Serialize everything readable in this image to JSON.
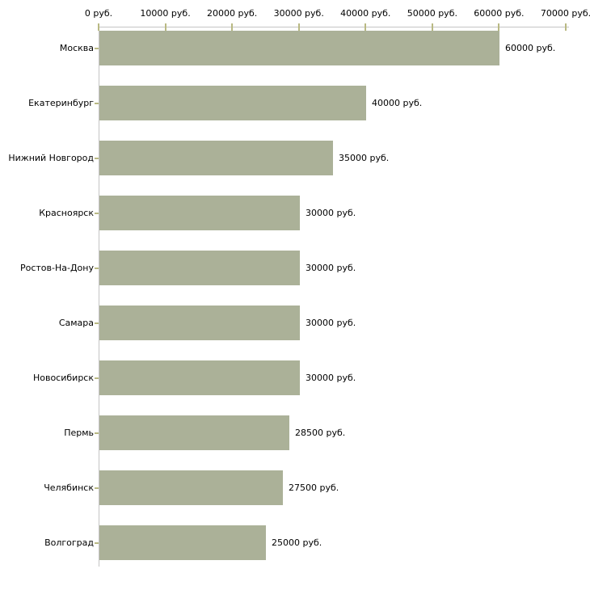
{
  "chart_data": {
    "type": "bar",
    "orientation": "horizontal",
    "title": "",
    "xlabel": "",
    "ylabel": "",
    "unit": "руб.",
    "grid": false,
    "legend": null,
    "xlim": [
      0,
      70000
    ],
    "x_ticks": [
      0,
      10000,
      20000,
      30000,
      40000,
      50000,
      60000,
      70000
    ],
    "x_tick_labels": [
      "0 руб.",
      "10000 руб.",
      "20000 руб.",
      "30000 руб.",
      "40000 руб.",
      "50000 руб.",
      "60000 руб.",
      "70000 руб."
    ],
    "categories": [
      "Москва",
      "Екатеринбург",
      "Нижний Новгород",
      "Красноярск",
      "Ростов-На-Дону",
      "Самара",
      "Новосибирск",
      "Пермь",
      "Челябинск",
      "Волгоград"
    ],
    "values": [
      60000,
      40000,
      35000,
      30000,
      30000,
      30000,
      30000,
      28500,
      27500,
      25000
    ],
    "value_labels": [
      "60000 руб.",
      "40000 руб.",
      "35000 руб.",
      "30000 руб.",
      "30000 руб.",
      "30000 руб.",
      "30000 руб.",
      "28500 руб.",
      "27500 руб.",
      "25000 руб."
    ]
  },
  "colors": {
    "background": "#ffffff",
    "bar_fill": "#abb198",
    "axis_line": "#c4c4c4",
    "tick_mark": "#b9b983",
    "text": "#000000"
  }
}
